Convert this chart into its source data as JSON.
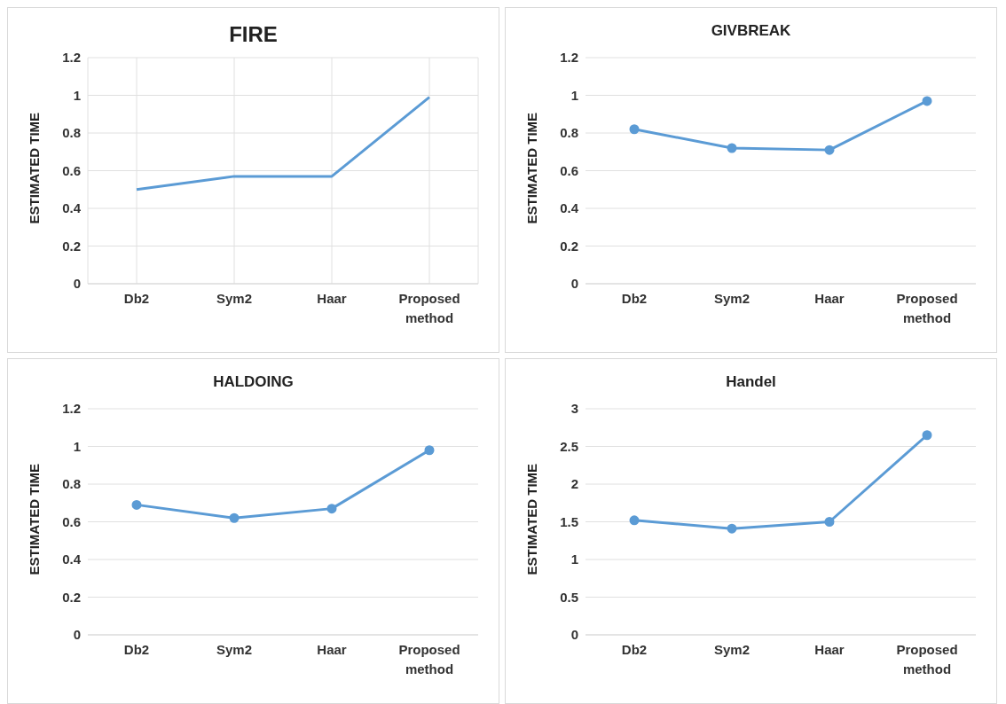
{
  "chart_data": [
    {
      "type": "line",
      "title": "FIRE",
      "ylabel": "ESTIMATED TIME",
      "categories": [
        "Db2",
        "Sym2",
        "Haar",
        "Proposed method"
      ],
      "values": [
        0.5,
        0.57,
        0.57,
        0.99
      ],
      "color": "#5b9bd5",
      "ylim": [
        0,
        1.2
      ],
      "yticks": [
        0,
        0.2,
        0.4,
        0.6,
        0.8,
        1,
        1.2
      ],
      "grid": true,
      "marker": "none"
    },
    {
      "type": "line",
      "title": "GIVBREAK",
      "ylabel": "ESTIMATED TIME",
      "categories": [
        "Db2",
        "Sym2",
        "Haar",
        "Proposed method"
      ],
      "values": [
        0.82,
        0.72,
        0.71,
        0.97
      ],
      "color": "#5b9bd5",
      "ylim": [
        0,
        1.2
      ],
      "yticks": [
        0,
        0.2,
        0.4,
        0.6,
        0.8,
        1,
        1.2
      ],
      "grid": "y",
      "marker": "circle"
    },
    {
      "type": "line",
      "title": "HALDOING",
      "ylabel": "ESTIMATED TIME",
      "categories": [
        "Db2",
        "Sym2",
        "Haar",
        "Proposed method"
      ],
      "values": [
        0.69,
        0.62,
        0.67,
        0.98
      ],
      "color": "#5b9bd5",
      "ylim": [
        0,
        1.2
      ],
      "yticks": [
        0,
        0.2,
        0.4,
        0.6,
        0.8,
        1,
        1.2
      ],
      "grid": "y",
      "marker": "circle"
    },
    {
      "type": "line",
      "title": "Handel",
      "ylabel": "ESTIMATED TIME",
      "categories": [
        "Db2",
        "Sym2",
        "Haar",
        "Proposed method"
      ],
      "values": [
        1.52,
        1.41,
        1.5,
        2.65
      ],
      "color": "#5b9bd5",
      "ylim": [
        0,
        3
      ],
      "yticks": [
        0,
        0.5,
        1,
        1.5,
        2,
        2.5,
        3
      ],
      "grid": "y",
      "marker": "circle"
    }
  ]
}
